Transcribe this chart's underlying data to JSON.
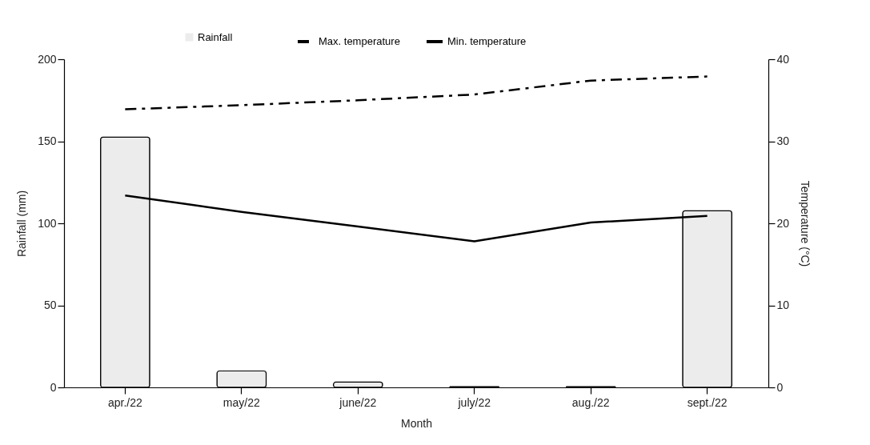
{
  "chart_data": {
    "type": "bar",
    "xlabel": "Month",
    "ylabel": "Rainfall (mm)",
    "y2label": "Temperature (°C)",
    "categories": [
      "apr./22",
      "may/22",
      "june/22",
      "july/22",
      "aug./22",
      "sept./22"
    ],
    "series": [
      {
        "name": "Rainfall",
        "color": "#ececec",
        "values": [
          152.5,
          10,
          3.2,
          0.5,
          0.5,
          107.6
        ]
      },
      {
        "name": "Max. temperature",
        "type": "line",
        "axis": "y2",
        "color": "#000000",
        "line_style": "dashed",
        "values": [
          33.9,
          34.4,
          35.0,
          35.7,
          37.4,
          37.9
        ]
      },
      {
        "name": "Min. temperature",
        "type": "line",
        "axis": "y2",
        "color": "#000000",
        "line_style": "solid",
        "values": [
          23.4,
          21.4,
          19.6,
          17.8,
          20.1,
          20.9
        ]
      }
    ],
    "ylim": [
      0,
      200
    ],
    "yticks": [
      0,
      50,
      100,
      150,
      200
    ],
    "y2lim": [
      0,
      40
    ],
    "y2ticks": [
      0,
      10,
      20,
      30,
      40
    ],
    "grid": false,
    "legend": "top"
  }
}
